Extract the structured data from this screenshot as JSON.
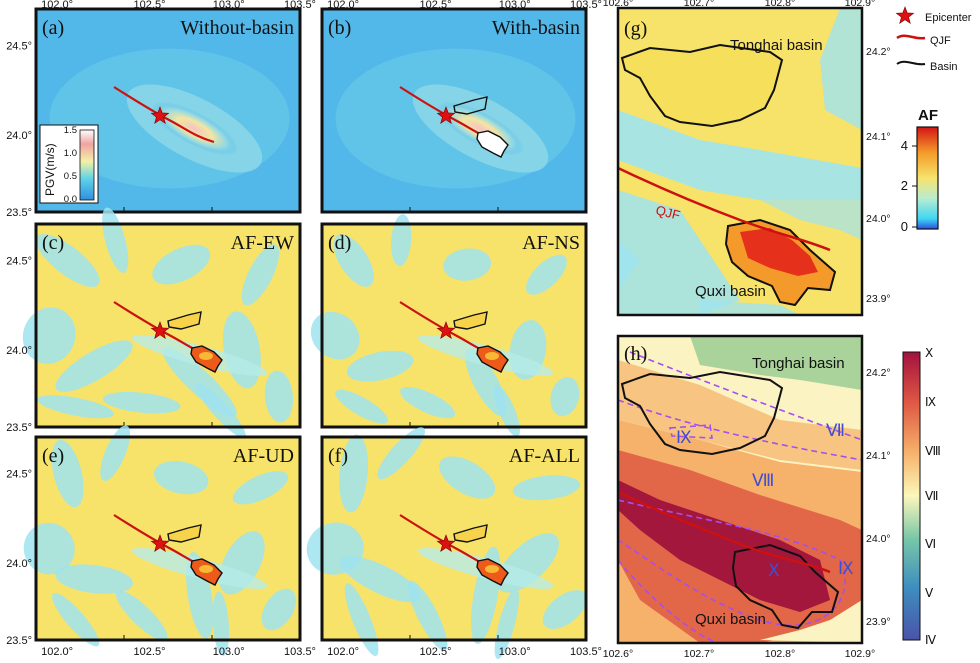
{
  "map_panels": [
    {
      "letter": "(a)",
      "title": "Without-basin",
      "kind": "pgv"
    },
    {
      "letter": "(b)",
      "title": "With-basin",
      "kind": "pgv_basin"
    },
    {
      "letter": "(c)",
      "title": "AF-EW",
      "kind": "af"
    },
    {
      "letter": "(d)",
      "title": "AF-NS",
      "kind": "af"
    },
    {
      "letter": "(e)",
      "title": "AF-UD",
      "kind": "af"
    },
    {
      "letter": "(f)",
      "title": "AF-ALL",
      "kind": "af"
    }
  ],
  "left_axes": {
    "x_ticks": [
      "102.0°",
      "102.5°",
      "103.0°",
      "103.5°"
    ],
    "y_ticks": [
      "24.5°",
      "24.0°",
      "23.5°"
    ]
  },
  "pgv_inset": {
    "label": "PGV(m/s)",
    "ticks": [
      "1.5",
      "1.0",
      "0.5",
      "0.0"
    ]
  },
  "panel_g": {
    "letter": "(g)",
    "x_ticks": [
      "102.6°",
      "102.7°",
      "102.8°",
      "102.9°"
    ],
    "y_ticks": [
      "24.2°",
      "24.1°",
      "24.0°",
      "23.9°"
    ],
    "tonghai_label": "Tonghai basin",
    "quxi_label": "Quxi basin",
    "fault_label": "QJF"
  },
  "panel_h": {
    "letter": "(h)",
    "x_ticks": [
      "102.6°",
      "102.7°",
      "102.8°",
      "102.9°"
    ],
    "y_ticks": [
      "24.2°",
      "24.1°",
      "24.0°",
      "23.9°"
    ],
    "tonghai_label": "Tonghai basin",
    "quxi_label": "Quxi basin",
    "intensity_labels": [
      "Ⅸ",
      "Ⅶ",
      "Ⅷ",
      "Ⅹ",
      "Ⅸ"
    ]
  },
  "legend": {
    "epicenter": "Epicenter",
    "fault": "QJF",
    "basin": "Basin"
  },
  "af_colorbar": {
    "title": "AF",
    "ticks": [
      "4",
      "2",
      "0"
    ]
  },
  "intensity_colorbar": {
    "ticks": [
      "Ⅹ",
      "Ⅸ",
      "Ⅷ",
      "Ⅶ",
      "Ⅵ",
      "Ⅴ",
      "Ⅳ"
    ]
  },
  "colors": {
    "fault": "#cc1111",
    "epicenter": "#dd1111",
    "af_yellow": "#f7e36a",
    "af_cyan": "#9fe3ef",
    "pgv_blue": "#4fb6e8",
    "intensity_line": "#a64ff0"
  }
}
